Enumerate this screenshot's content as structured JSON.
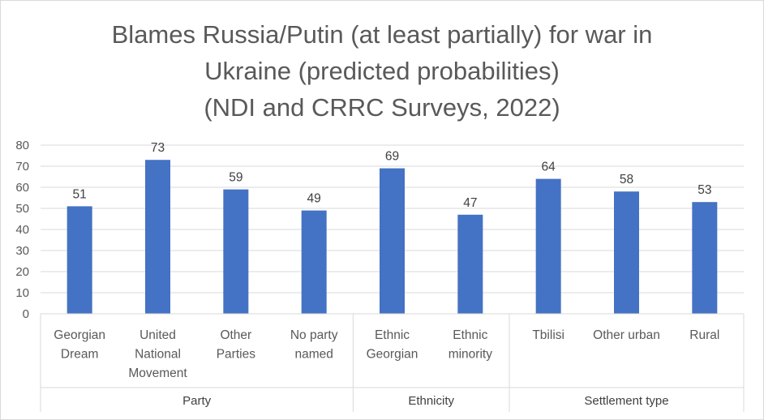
{
  "chart_data": {
    "type": "bar",
    "title_lines": [
      "Blames Russia/Putin (at least partially) for war in",
      "Ukraine (predicted probabilities)",
      "(NDI and CRRC Surveys, 2022)"
    ],
    "ylim": [
      0,
      80
    ],
    "yticks": [
      "0",
      "10",
      "20",
      "30",
      "40",
      "50",
      "60",
      "70",
      "80"
    ],
    "grid": true,
    "bar_color": "#4472C4",
    "categories": [
      {
        "label_lines": [
          "Georgian",
          "Dream"
        ],
        "value": 51,
        "group": 0
      },
      {
        "label_lines": [
          "United",
          "National",
          "Movement"
        ],
        "value": 73,
        "group": 0
      },
      {
        "label_lines": [
          "Other",
          "Parties"
        ],
        "value": 59,
        "group": 0
      },
      {
        "label_lines": [
          "No party",
          "named"
        ],
        "value": 49,
        "group": 0
      },
      {
        "label_lines": [
          "Ethnic",
          "Georgian"
        ],
        "value": 69,
        "group": 1
      },
      {
        "label_lines": [
          "Ethnic",
          "minority"
        ],
        "value": 47,
        "group": 1
      },
      {
        "label_lines": [
          "Tbilisi"
        ],
        "value": 64,
        "group": 2
      },
      {
        "label_lines": [
          "Other urban"
        ],
        "value": 58,
        "group": 2
      },
      {
        "label_lines": [
          "Rural"
        ],
        "value": 53,
        "group": 2
      }
    ],
    "groups": [
      "Party",
      "Ethnicity",
      "Settlement type"
    ]
  }
}
